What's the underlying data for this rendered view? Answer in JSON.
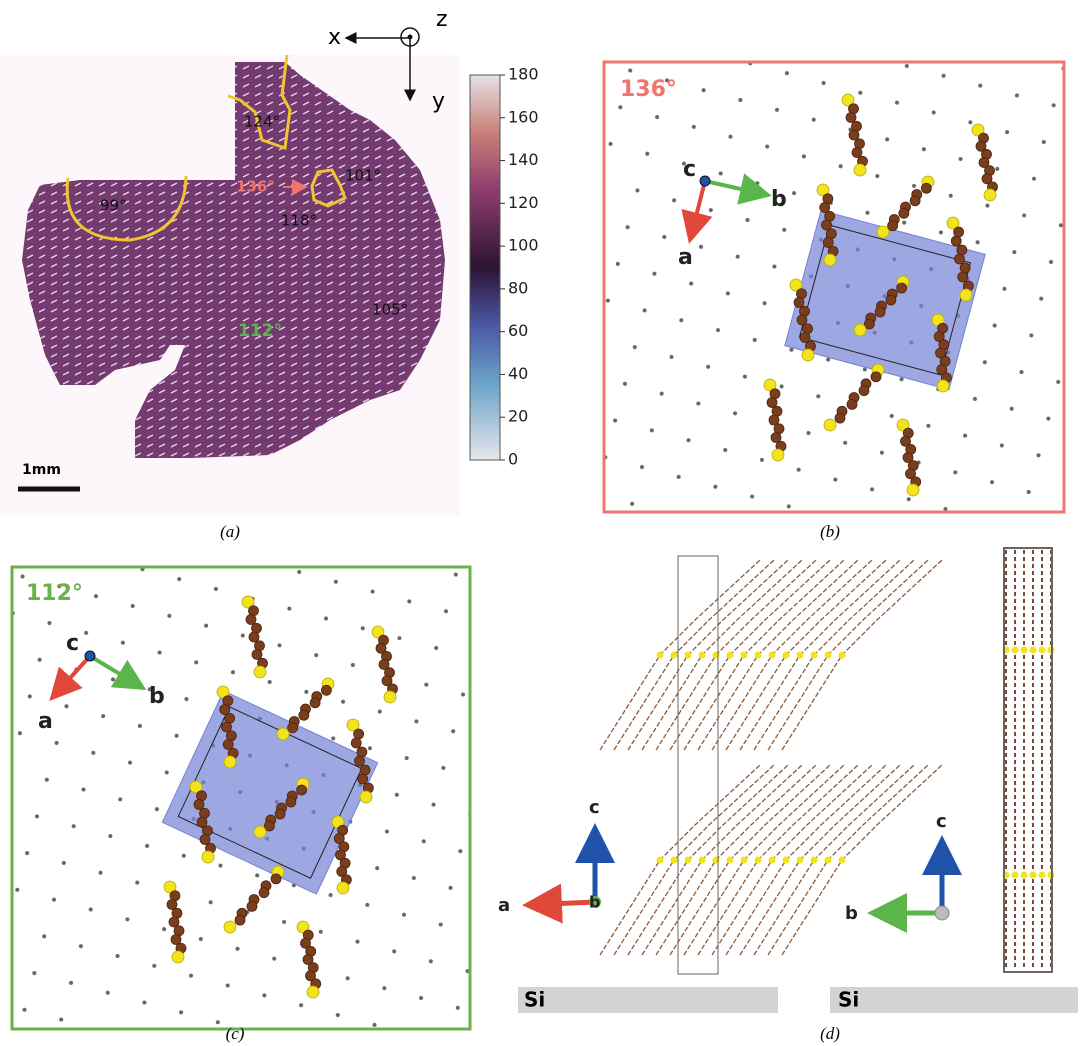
{
  "panel_a": {
    "label": "(a)",
    "axis_x": "x",
    "axis_y": "y",
    "axis_z": "z",
    "angles": [
      "124°",
      "136°",
      "101°",
      "99°",
      "118°",
      "105°",
      "112°"
    ],
    "scale_bar": "1mm",
    "colorbar": {
      "lim": [
        0,
        180
      ],
      "ticks": [
        0,
        20,
        40,
        60,
        80,
        100,
        120,
        140,
        160,
        180
      ]
    }
  },
  "panel_b": {
    "label": "(b)",
    "angle": "136°",
    "axis_c": "c",
    "axis_b": "b",
    "axis_a": "a"
  },
  "panel_c": {
    "label": "(c)",
    "angle": "112°",
    "axis_c": "c",
    "axis_b": "b",
    "axis_a": "a"
  },
  "panel_d": {
    "label": "(d)",
    "left": {
      "axis_c": "c",
      "axis_a": "a",
      "axis_b": "b",
      "substrate": "Si"
    },
    "right": {
      "axis_c": "c",
      "axis_b": "b",
      "substrate": "Si"
    }
  }
}
